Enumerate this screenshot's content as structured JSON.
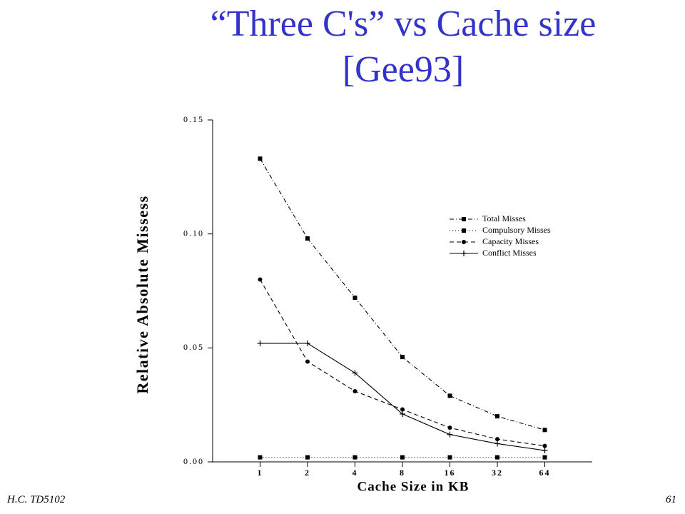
{
  "chart_data": {
    "type": "line",
    "title": "“Three C's” vs Cache size [Gee93]",
    "x_label": "Cache Size in KB",
    "y_label": "Relative Absolute Missess",
    "categories": [
      "1",
      "2",
      "4",
      "8",
      "16",
      "32",
      "64"
    ],
    "ylim": [
      0,
      0.15
    ],
    "yticks": [
      {
        "value": 0,
        "label": "0.00"
      },
      0.05,
      {
        "value": 0.1,
        "label": "0.10"
      },
      0.15
    ],
    "legend_position": "upper right",
    "series": [
      {
        "name": "Total Misses",
        "color": "#000000",
        "dash": "6 3 1 3",
        "marker": "square",
        "values": [
          0.133,
          0.098,
          0.072,
          0.046,
          0.029,
          0.02,
          0.014
        ]
      },
      {
        "name": "Compulsory Misses",
        "color": "#000000",
        "dash": "1 3",
        "marker": "square",
        "values": [
          0.002,
          0.002,
          0.002,
          0.002,
          0.002,
          0.002,
          0.002
        ]
      },
      {
        "name": "Capacity Misses",
        "color": "#000000",
        "dash": "6 4",
        "marker": "circle",
        "values": [
          0.08,
          0.044,
          0.031,
          0.023,
          0.015,
          0.01,
          0.007
        ]
      },
      {
        "name": "Conflict Misses",
        "color": "#000000",
        "dash": "none",
        "marker": "plus",
        "values": [
          0.052,
          0.052,
          0.039,
          0.021,
          0.012,
          0.008,
          0.005
        ]
      }
    ]
  },
  "footer": {
    "left": "H.C.  TD5102",
    "right": "61"
  }
}
